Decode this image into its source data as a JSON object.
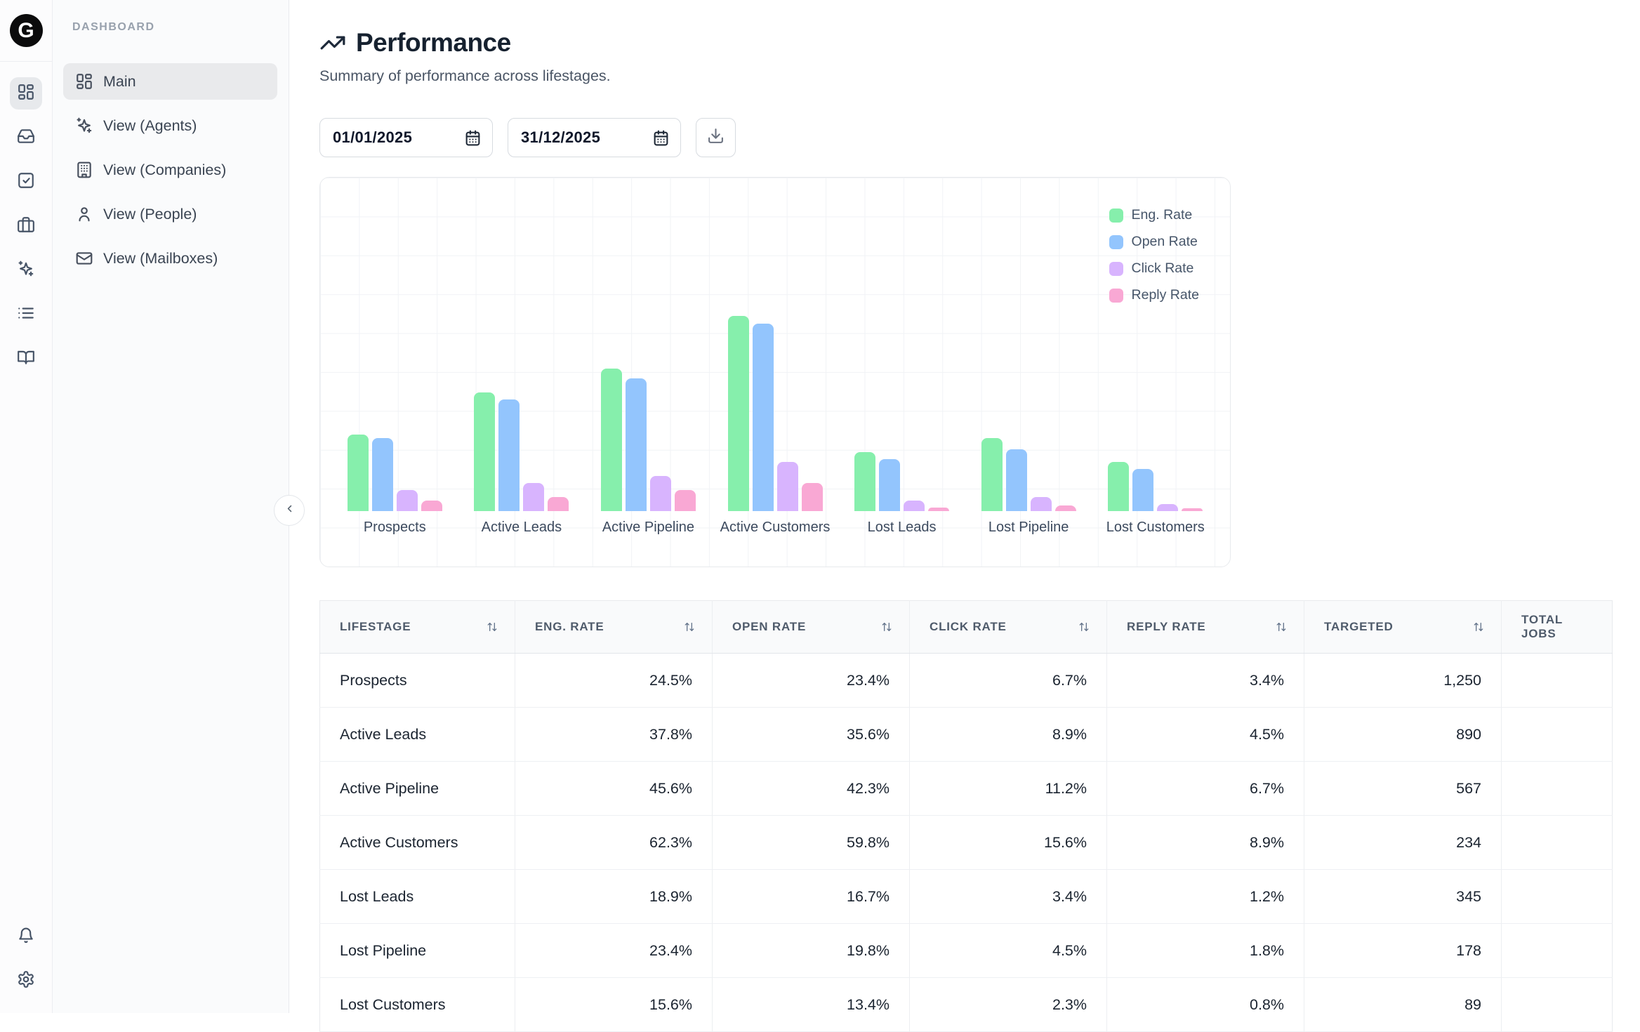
{
  "app": {
    "logo_letter": "G"
  },
  "sidebar": {
    "section_label": "DASHBOARD",
    "rail": [
      {
        "icon": "dashboard-grid-icon",
        "selected": true
      },
      {
        "icon": "inbox-icon",
        "selected": false
      },
      {
        "icon": "check-square-icon",
        "selected": false
      },
      {
        "icon": "briefcase-icon",
        "selected": false
      },
      {
        "icon": "sparkles-icon",
        "selected": false
      },
      {
        "icon": "list-icon",
        "selected": false
      },
      {
        "icon": "book-open-icon",
        "selected": false
      }
    ],
    "rail_bottom": [
      {
        "icon": "bell-icon"
      },
      {
        "icon": "gear-icon"
      }
    ],
    "items": [
      {
        "label": "Main",
        "icon": "dashboard-grid-icon",
        "active": true
      },
      {
        "label": "View (Agents)",
        "icon": "sparkles-icon",
        "active": false
      },
      {
        "label": "View (Companies)",
        "icon": "building-icon",
        "active": false
      },
      {
        "label": "View (People)",
        "icon": "person-icon",
        "active": false
      },
      {
        "label": "View (Mailboxes)",
        "icon": "mail-icon",
        "active": false
      }
    ]
  },
  "header": {
    "title": "Performance",
    "title_icon": "trending-up-icon",
    "subtitle": "Summary of performance across lifestages."
  },
  "controls": {
    "date_from": "01/01/2025",
    "date_to": "31/12/2025",
    "calendar_icon": "calendar-icon",
    "download_icon": "download-icon"
  },
  "chart_data": {
    "type": "bar",
    "title": "",
    "categories": [
      "Prospects",
      "Active Leads",
      "Active Pipeline",
      "Active Customers",
      "Lost Leads",
      "Lost Pipeline",
      "Lost Customers"
    ],
    "series": [
      {
        "name": "Eng. Rate",
        "color": "#86efac",
        "values": [
          24.5,
          37.8,
          45.6,
          62.3,
          18.9,
          23.4,
          15.6
        ]
      },
      {
        "name": "Open Rate",
        "color": "#93c5fd",
        "values": [
          23.4,
          35.6,
          42.3,
          59.8,
          16.7,
          19.8,
          13.4
        ]
      },
      {
        "name": "Click Rate",
        "color": "#d8b4fe",
        "values": [
          6.7,
          8.9,
          11.2,
          15.6,
          3.4,
          4.5,
          2.3
        ]
      },
      {
        "name": "Reply Rate",
        "color": "#f9a8d4",
        "values": [
          3.4,
          4.5,
          6.7,
          8.9,
          1.2,
          1.8,
          0.8
        ]
      }
    ],
    "value_unit": "%",
    "ylim": [
      0,
      65
    ],
    "grid": true,
    "legend_position": "top-right"
  },
  "table": {
    "columns": [
      {
        "label": "LIFESTAGE",
        "sortable": true,
        "align": "left"
      },
      {
        "label": "ENG. RATE",
        "sortable": true,
        "align": "right"
      },
      {
        "label": "OPEN RATE",
        "sortable": true,
        "align": "right"
      },
      {
        "label": "CLICK RATE",
        "sortable": true,
        "align": "right"
      },
      {
        "label": "REPLY RATE",
        "sortable": true,
        "align": "right"
      },
      {
        "label": "TARGETED",
        "sortable": true,
        "align": "right"
      },
      {
        "label": "TOTAL JOBS",
        "sortable": false,
        "align": "left"
      }
    ],
    "rows": [
      [
        "Prospects",
        "24.5%",
        "23.4%",
        "6.7%",
        "3.4%",
        "1,250",
        ""
      ],
      [
        "Active Leads",
        "37.8%",
        "35.6%",
        "8.9%",
        "4.5%",
        "890",
        ""
      ],
      [
        "Active Pipeline",
        "45.6%",
        "42.3%",
        "11.2%",
        "6.7%",
        "567",
        ""
      ],
      [
        "Active Customers",
        "62.3%",
        "59.8%",
        "15.6%",
        "8.9%",
        "234",
        ""
      ],
      [
        "Lost Leads",
        "18.9%",
        "16.7%",
        "3.4%",
        "1.2%",
        "345",
        ""
      ],
      [
        "Lost Pipeline",
        "23.4%",
        "19.8%",
        "4.5%",
        "1.8%",
        "178",
        ""
      ],
      [
        "Lost Customers",
        "15.6%",
        "13.4%",
        "2.3%",
        "0.8%",
        "89",
        ""
      ]
    ]
  },
  "colors": {
    "accent_green": "#86efac",
    "accent_blue": "#93c5fd",
    "accent_purple": "#d8b4fe",
    "accent_pink": "#f9a8d4",
    "panel_bg": "#fafbfc",
    "border": "#e8eaed"
  }
}
